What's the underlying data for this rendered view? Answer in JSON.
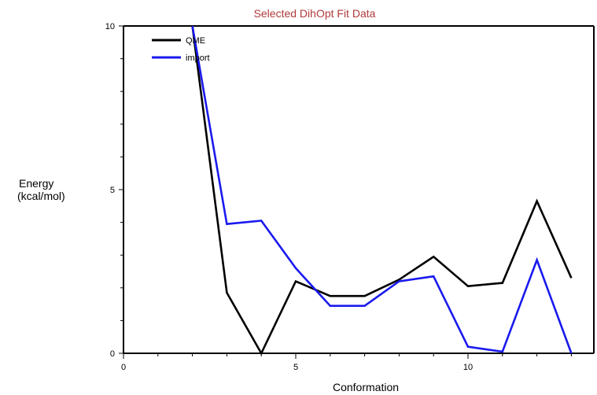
{
  "chart_data": {
    "type": "line",
    "title": "Selected DihOpt Fit Data",
    "xlabel": "Conformation",
    "ylabel_lines": [
      "Energy",
      "(kcal/mol)"
    ],
    "xlim": [
      0,
      14
    ],
    "ylim": [
      0,
      10
    ],
    "x_ticks": [
      0,
      5,
      10
    ],
    "y_ticks": [
      0,
      5,
      10
    ],
    "legend_position": "top-left",
    "grid": false,
    "series": [
      {
        "name": "QME",
        "color": "#000000",
        "x": [
          2,
          3,
          4,
          5,
          6,
          7,
          8,
          9,
          10,
          11,
          12,
          13
        ],
        "values": [
          10.0,
          1.85,
          0.0,
          2.2,
          1.75,
          1.75,
          2.25,
          2.95,
          2.05,
          2.15,
          4.65,
          2.3
        ]
      },
      {
        "name": "import",
        "color": "#1a1aee",
        "x": [
          2,
          3,
          4,
          5,
          6,
          7,
          8,
          9,
          10,
          11,
          12,
          13
        ],
        "values": [
          10.0,
          3.95,
          4.05,
          2.6,
          1.45,
          1.45,
          2.2,
          2.35,
          0.2,
          0.05,
          2.85,
          0.0
        ]
      }
    ]
  }
}
